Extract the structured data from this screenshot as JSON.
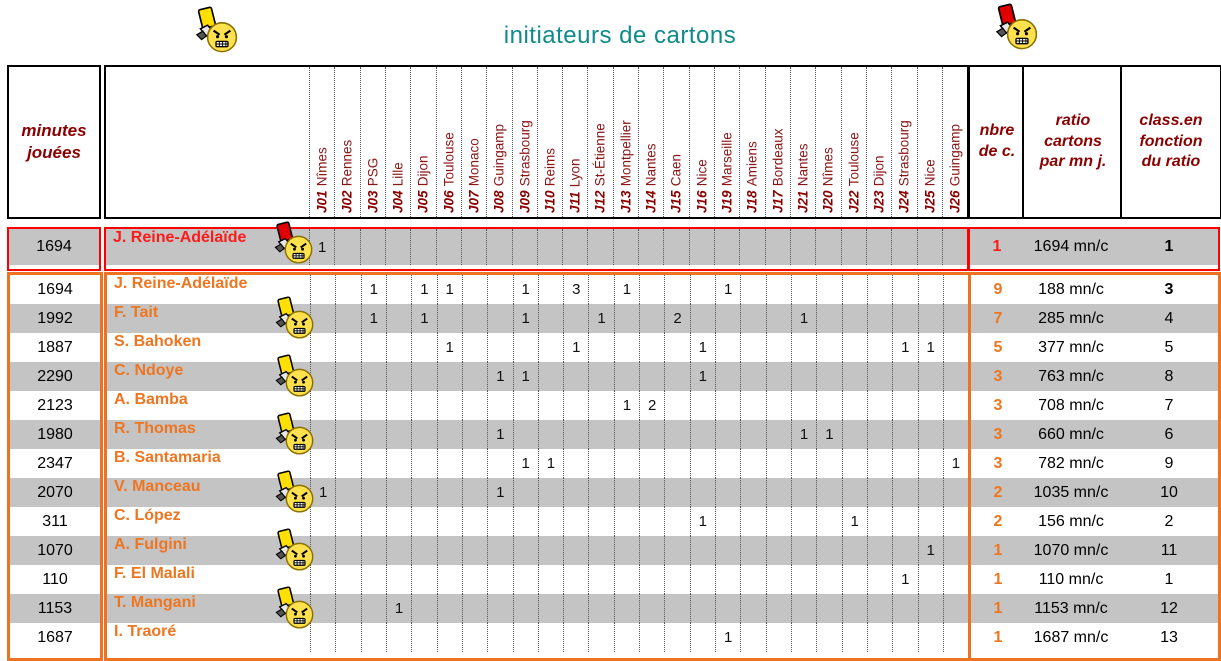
{
  "title": "initiateurs de cartons",
  "colors": {
    "accent_teal": "#0f8b8b",
    "header_dark_red": "#8b0000",
    "orange": "#ed7221",
    "red": "#ff0000",
    "stripe_gray": "#c4c4c4",
    "yellow_card": "#ffe000",
    "red_card": "#e00000"
  },
  "icons": {
    "top_left": "yellow-card-referee",
    "top_right": "red-card-referee"
  },
  "headers": {
    "minutes": [
      "minutes",
      "jouées"
    ],
    "nbre": [
      "nbre",
      "de c."
    ],
    "ratio": [
      "ratio",
      "cartons",
      "par mn j."
    ],
    "classement": [
      "class.en",
      "fonction",
      "du ratio"
    ]
  },
  "matchdays": [
    {
      "id": "J01",
      "team": "Nîmes"
    },
    {
      "id": "J02",
      "team": "Rennes"
    },
    {
      "id": "J03",
      "team": "PSG"
    },
    {
      "id": "J04",
      "team": "Lille"
    },
    {
      "id": "J05",
      "team": "Dijon"
    },
    {
      "id": "J06",
      "team": "Toulouse"
    },
    {
      "id": "J07",
      "team": "Monaco"
    },
    {
      "id": "J08",
      "team": "Guingamp"
    },
    {
      "id": "J09",
      "team": "Strasbourg"
    },
    {
      "id": "J10",
      "team": "Reims"
    },
    {
      "id": "J11",
      "team": "Lyon"
    },
    {
      "id": "J12",
      "team": "St-Étienne"
    },
    {
      "id": "J13",
      "team": "Montpellier"
    },
    {
      "id": "J14",
      "team": "Nantes"
    },
    {
      "id": "J15",
      "team": "Caen"
    },
    {
      "id": "J16",
      "team": "Nice"
    },
    {
      "id": "J19",
      "team": "Marseille"
    },
    {
      "id": "J18",
      "team": "Amiens"
    },
    {
      "id": "J17",
      "team": "Bordeaux"
    },
    {
      "id": "J21",
      "team": "Nantes"
    },
    {
      "id": "J20",
      "team": "Nîmes"
    },
    {
      "id": "J22",
      "team": "Toulouse"
    },
    {
      "id": "J23",
      "team": "Dijon"
    },
    {
      "id": "J24",
      "team": "Strasbourg"
    },
    {
      "id": "J25",
      "team": "Nice"
    },
    {
      "id": "J26",
      "team": "Guingamp"
    }
  ],
  "red_row": {
    "minutes": "1694",
    "name": "J. Reine-Adélaïde",
    "icon": "red-card",
    "cards": {
      "J01": "1"
    },
    "nbre": "1",
    "ratio": "1694 mn/c",
    "classement": "1",
    "class_bold": true,
    "stripe": "gray"
  },
  "rows": [
    {
      "minutes": "1694",
      "name": "J. Reine-Adélaïde",
      "icon": null,
      "cards": {
        "J03": "1",
        "J05": "1",
        "J06": "1",
        "J09": "1",
        "J11": "3",
        "J13": "1",
        "J19": "1"
      },
      "nbre": "9",
      "ratio": "188 mn/c",
      "classement": "3",
      "class_bold": true
    },
    {
      "minutes": "1992",
      "name": "F. Tait",
      "icon": "yellow-card",
      "cards": {
        "J03": "1",
        "J05": "1",
        "J09": "1",
        "J12": "1",
        "J15": "2",
        "J21": "1"
      },
      "nbre": "7",
      "ratio": "285 mn/c",
      "classement": "4",
      "class_bold": false
    },
    {
      "minutes": "1887",
      "name": "S. Bahoken",
      "icon": null,
      "cards": {
        "J06": "1",
        "J11": "1",
        "J16": "1",
        "J24": "1",
        "J25": "1"
      },
      "nbre": "5",
      "ratio": "377 mn/c",
      "classement": "5",
      "class_bold": false
    },
    {
      "minutes": "2290",
      "name": "C. Ndoye",
      "icon": "yellow-card",
      "cards": {
        "J08": "1",
        "J09": "1",
        "J16": "1"
      },
      "nbre": "3",
      "ratio": "763 mn/c",
      "classement": "8",
      "class_bold": false
    },
    {
      "minutes": "2123",
      "name": "A. Bamba",
      "icon": null,
      "cards": {
        "J13": "1",
        "J14": "2"
      },
      "nbre": "3",
      "ratio": "708 mn/c",
      "classement": "7",
      "class_bold": false
    },
    {
      "minutes": "1980",
      "name": "R. Thomas",
      "icon": "yellow-card",
      "cards": {
        "J08": "1",
        "J21": "1",
        "J20": "1"
      },
      "nbre": "3",
      "ratio": "660 mn/c",
      "classement": "6",
      "class_bold": false
    },
    {
      "minutes": "2347",
      "name": "B. Santamaria",
      "icon": null,
      "cards": {
        "J09": "1",
        "J10": "1",
        "J26": "1"
      },
      "nbre": "3",
      "ratio": "782 mn/c",
      "classement": "9",
      "class_bold": false
    },
    {
      "minutes": "2070",
      "name": "V. Manceau",
      "icon": "yellow-card",
      "cards": {
        "J01": "1",
        "J08": "1"
      },
      "nbre": "2",
      "ratio": "1035 mn/c",
      "classement": "10",
      "class_bold": false
    },
    {
      "minutes": "311",
      "name": "C. López",
      "icon": null,
      "cards": {
        "J16": "1",
        "J22": "1"
      },
      "nbre": "2",
      "ratio": "156 mn/c",
      "classement": "2",
      "class_bold": false
    },
    {
      "minutes": "1070",
      "name": "A. Fulgini",
      "icon": "yellow-card",
      "cards": {
        "J25": "1"
      },
      "nbre": "1",
      "ratio": "1070 mn/c",
      "classement": "11",
      "class_bold": false
    },
    {
      "minutes": "110",
      "name": "F. El Malali",
      "icon": null,
      "cards": {
        "J24": "1"
      },
      "nbre": "1",
      "ratio": "110 mn/c",
      "classement": "1",
      "class_bold": false
    },
    {
      "minutes": "1153",
      "name": "T. Mangani",
      "icon": "yellow-card",
      "cards": {
        "J04": "1"
      },
      "nbre": "1",
      "ratio": "1153 mn/c",
      "classement": "12",
      "class_bold": false
    },
    {
      "minutes": "1687",
      "name": "I. Traoré",
      "icon": null,
      "cards": {
        "J19": "1"
      },
      "nbre": "1",
      "ratio": "1687 mn/c",
      "classement": "13",
      "class_bold": false
    }
  ]
}
